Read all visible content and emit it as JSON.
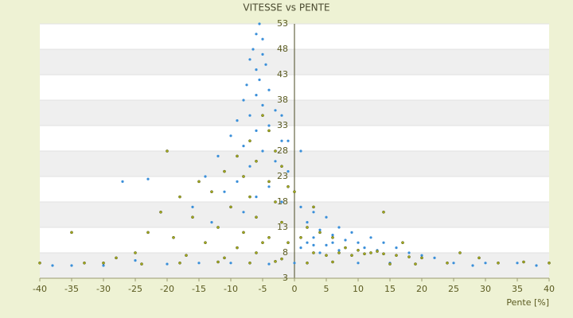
{
  "chart_data": {
    "type": "scatter",
    "title": "VITESSE vs PENTE",
    "x_label": "Pente [%]",
    "xlim": [
      -40,
      40
    ],
    "xticks": [
      -40,
      -35,
      -30,
      -25,
      -20,
      -15,
      -10,
      -5,
      0,
      5,
      10,
      15,
      20,
      25,
      30,
      35,
      40
    ],
    "ylim": [
      3,
      53
    ],
    "yticks": [
      3,
      8,
      13,
      18,
      23,
      28,
      33,
      38,
      43,
      48,
      53
    ],
    "grid": true,
    "series": [
      {
        "color": "#3a8fd9",
        "x": [
          -5.5,
          -6,
          -5,
          -6.5,
          -5,
          -7,
          -4.5,
          -6,
          -5.5,
          -7.5,
          -4,
          -6,
          -8,
          -5,
          -3,
          -7,
          -9,
          -4,
          -6,
          -10,
          -2,
          -8,
          -5,
          -12,
          -3,
          -7,
          -1,
          -14,
          -9,
          -4,
          -27,
          -23,
          -11,
          -6,
          -2,
          -16,
          1,
          3,
          -8,
          5,
          2,
          -13,
          7,
          4,
          9,
          6,
          12,
          3,
          8,
          14,
          10,
          2,
          5,
          16,
          11,
          7,
          18,
          4,
          13,
          20,
          9,
          1,
          6,
          3,
          22,
          25,
          30,
          35,
          38,
          28,
          -35,
          -38,
          -30,
          -20,
          -15,
          -10,
          0,
          10,
          15,
          -4,
          -25,
          -2,
          -1,
          1
        ],
        "values": [
          53,
          51,
          50,
          48,
          47,
          46,
          45,
          44,
          42,
          41,
          40,
          39,
          38,
          37,
          36,
          35,
          34,
          33,
          32,
          31,
          30,
          29,
          28,
          27,
          26,
          25,
          24,
          23,
          22,
          21,
          22,
          22.5,
          20,
          19,
          18,
          17,
          17,
          16,
          16,
          15,
          14,
          14,
          13,
          12.5,
          12,
          11.5,
          11,
          11,
          10.5,
          10,
          10,
          10,
          9.5,
          9,
          9,
          8.5,
          8,
          8,
          8.5,
          7.5,
          7.5,
          9,
          10,
          9.5,
          7,
          6,
          6,
          6,
          5.5,
          5.5,
          5.5,
          5.5,
          5.5,
          5.8,
          6,
          6,
          6,
          6,
          6,
          5.8,
          6.5,
          35,
          30,
          28
        ]
      },
      {
        "color": "#a3ab1c",
        "x": [
          -5,
          -4,
          -7,
          -3,
          -9,
          -6,
          -2,
          -11,
          -8,
          -20,
          -15,
          -4,
          -1,
          -13,
          -18,
          -7,
          -3,
          -10,
          -21,
          -16,
          -6,
          -2,
          -35,
          -23,
          -12,
          -8,
          -19,
          -4,
          -14,
          -25,
          -9,
          -1,
          2,
          4,
          6,
          8,
          10,
          12,
          14,
          16,
          18,
          20,
          3,
          5,
          7,
          9,
          11,
          13,
          1,
          -6,
          -11,
          -17,
          -28,
          -33,
          -40,
          -30,
          -24,
          -18,
          -12,
          -7,
          -3,
          2,
          6,
          15,
          19,
          24,
          32,
          36,
          40,
          14,
          17,
          26,
          29,
          -5,
          -2,
          0,
          3
        ],
        "values": [
          35,
          32,
          30,
          28,
          27,
          26,
          25,
          24,
          23,
          28,
          22,
          22,
          21,
          20,
          19,
          19,
          18,
          17,
          16,
          15,
          15,
          14,
          12,
          12,
          13,
          12,
          11,
          11,
          10,
          8,
          9,
          10,
          13,
          12,
          11,
          9,
          8.5,
          8,
          7.8,
          7.5,
          7.2,
          7,
          8,
          7.5,
          8,
          7.5,
          7.8,
          8.3,
          11,
          8,
          7,
          7.5,
          7,
          6,
          6,
          6,
          5.8,
          6,
          6.2,
          6,
          6.3,
          6,
          6.2,
          5.8,
          5.8,
          6,
          6,
          6.2,
          6,
          16,
          10,
          8,
          7,
          10,
          6.8,
          20,
          17
        ]
      }
    ]
  }
}
